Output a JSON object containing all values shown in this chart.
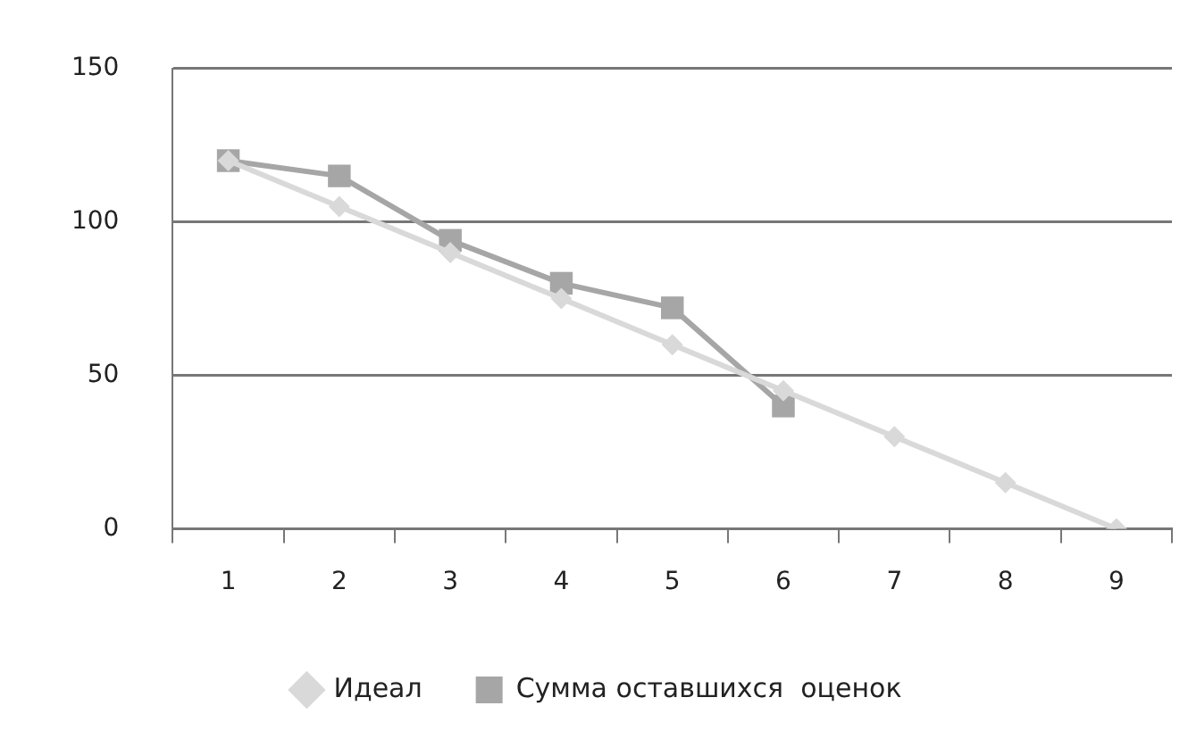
{
  "chart_data": {
    "type": "line",
    "categories": [
      "1",
      "2",
      "3",
      "4",
      "5",
      "6",
      "7",
      "8",
      "9"
    ],
    "series": [
      {
        "name": "Идеал",
        "color": "#d9d9d9",
        "marker": "diamond",
        "values": [
          120,
          105,
          90,
          75,
          60,
          45,
          30,
          15,
          0
        ]
      },
      {
        "name": "Сумма оставшихся  оценок",
        "color": "#a6a6a6",
        "marker": "square",
        "values": [
          120,
          115,
          94,
          80,
          72,
          40,
          null,
          null,
          null
        ]
      }
    ],
    "ylim": [
      0,
      150
    ],
    "yticks": [
      0,
      50,
      100,
      150
    ],
    "grid": "y",
    "legend": "bottom",
    "line_style": "solid"
  }
}
